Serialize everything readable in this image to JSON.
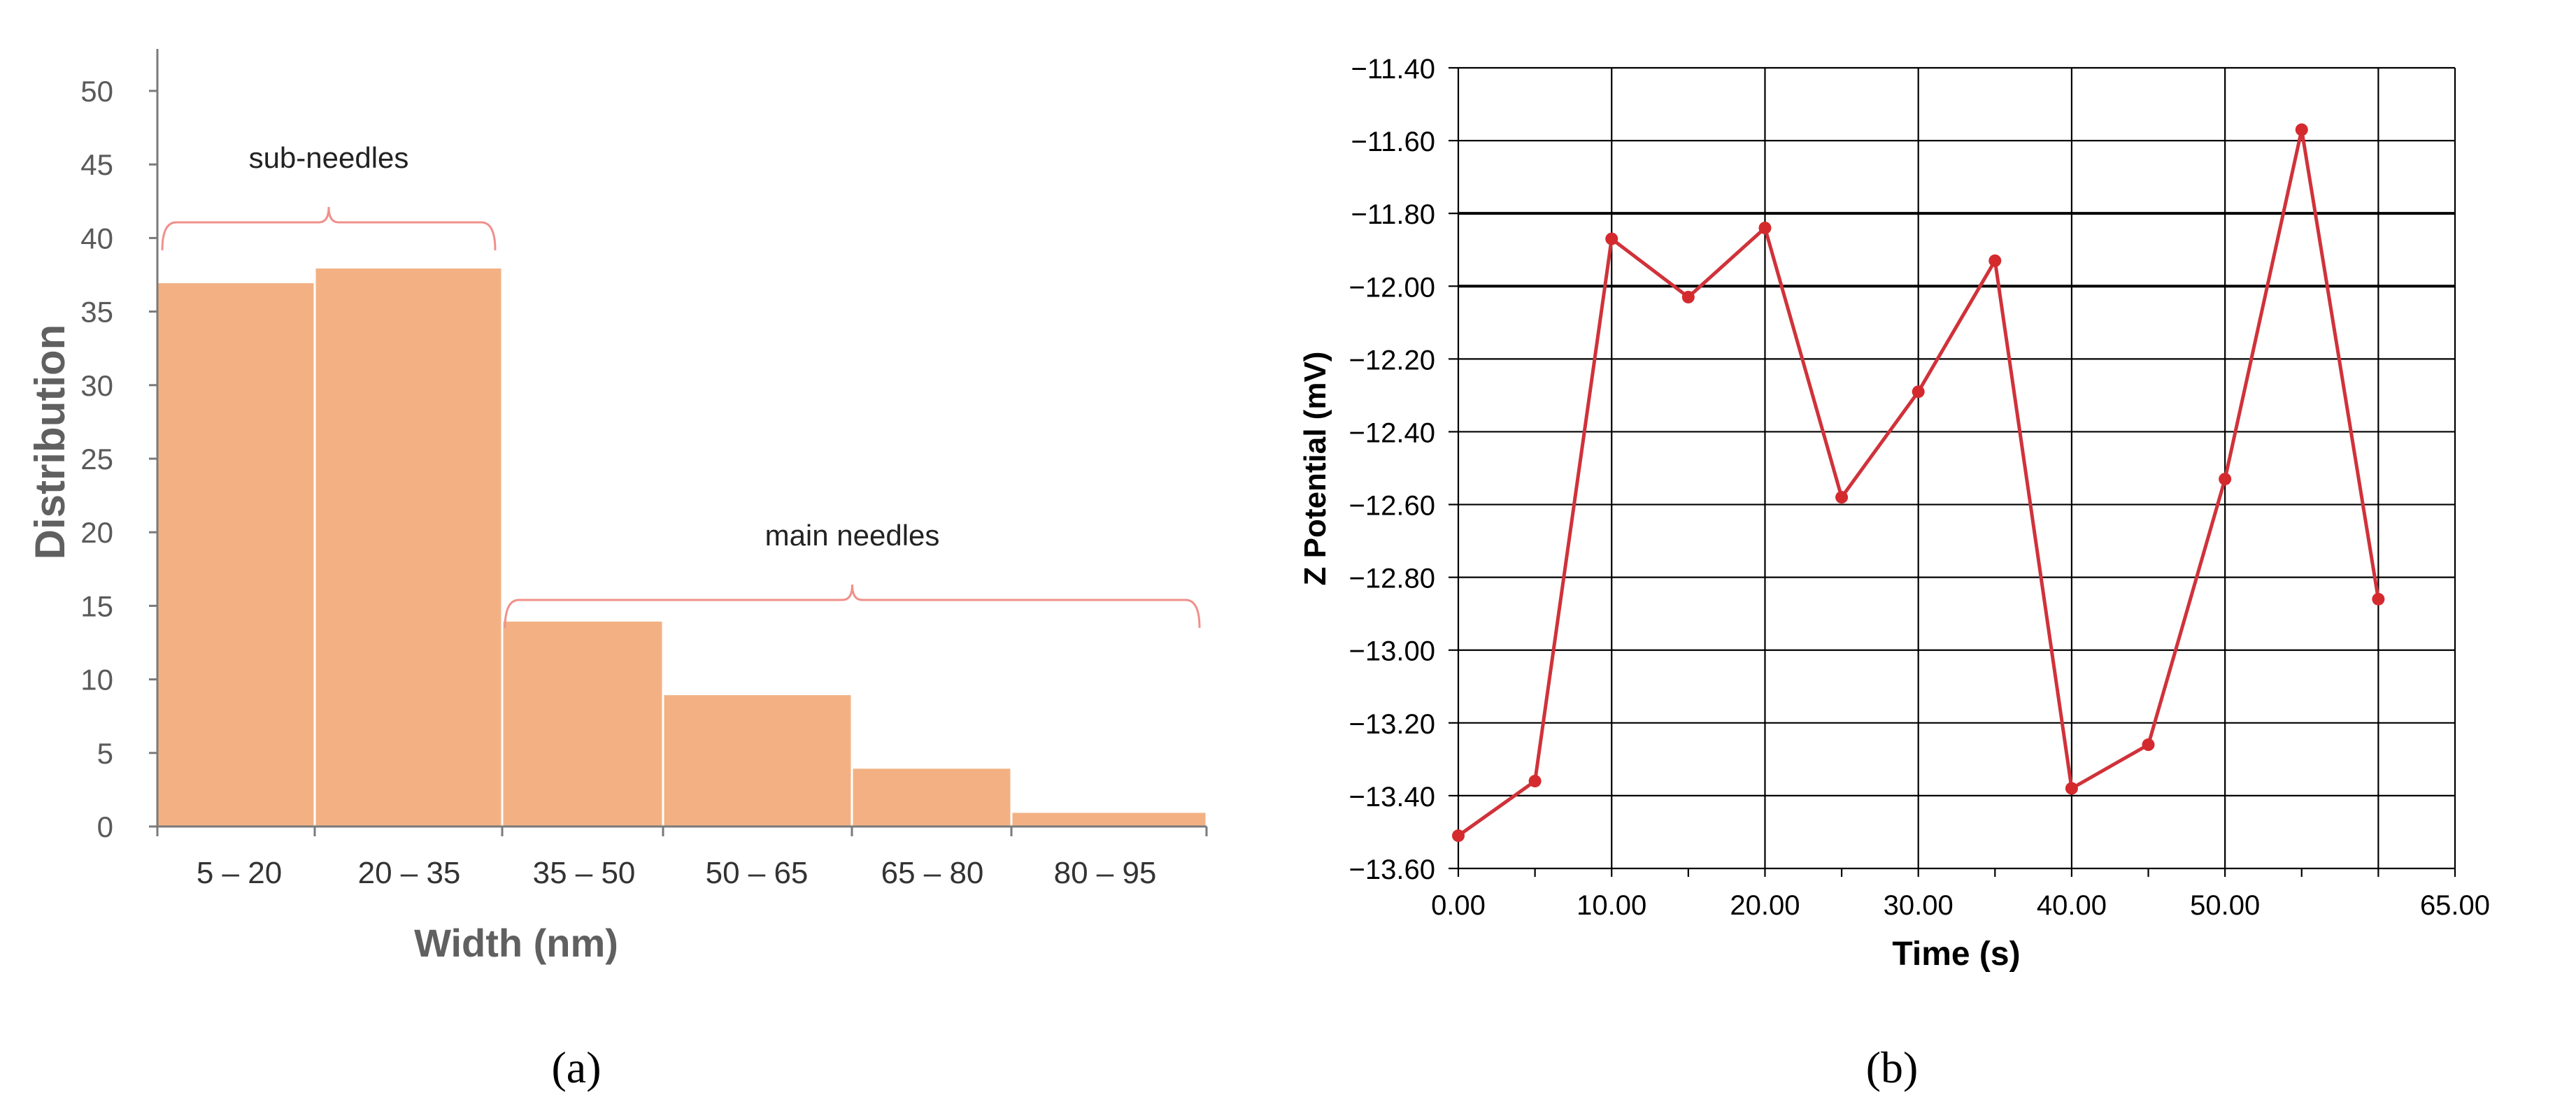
{
  "colors": {
    "bar_fill": "#F3B183",
    "bracket": "#F0908A",
    "series_line": "#D0323A",
    "marker": "#D42A2E",
    "grid_b": "#000000",
    "axis_a_text": "#5A5A5A"
  },
  "panels": {
    "a": {
      "label": "(a)"
    },
    "b": {
      "label": "(b)"
    }
  },
  "chart_data": [
    {
      "type": "bar",
      "categories": [
        "5 – 20",
        "20 – 35",
        "35 – 50",
        "50 – 65",
        "65 – 80",
        "80 – 95"
      ],
      "values": [
        37,
        38,
        14,
        9,
        4,
        1
      ],
      "xlabel": "Width (nm)",
      "ylabel": "Distribution",
      "ylim": [
        0,
        50
      ],
      "yticks": [
        0,
        5,
        10,
        15,
        20,
        25,
        30,
        35,
        40,
        45,
        50
      ],
      "grid": false,
      "annotations": [
        {
          "text": "sub-needles",
          "from_category": 0,
          "to_category": 1
        },
        {
          "text": "main needles",
          "from_category": 2,
          "to_category": 5
        }
      ]
    },
    {
      "type": "line",
      "x": [
        0,
        5,
        10,
        15,
        20,
        25,
        30,
        35,
        40,
        45,
        50,
        55,
        60
      ],
      "series": [
        {
          "values": [
            -13.51,
            -13.36,
            -11.87,
            -12.03,
            -11.84,
            -12.58,
            -12.29,
            -11.93,
            -13.38,
            -13.26,
            -12.53,
            -11.57,
            -12.86
          ]
        }
      ],
      "xlabel": "Time (s)",
      "ylabel": "Z Potential (mV)",
      "xlim": [
        0,
        65
      ],
      "ylim": [
        -13.6,
        -11.4
      ],
      "xticks": [
        "0.00",
        "10.00",
        "20.00",
        "30.00",
        "40.00",
        "50.00",
        "65.00"
      ],
      "yticks": [
        "-11.40",
        "-11.60",
        "-11.80",
        "-12.00",
        "-12.20",
        "-12.40",
        "-12.60",
        "-12.80",
        "-13.00",
        "-13.20",
        "-13.40",
        "-13.60"
      ],
      "grid": true
    }
  ]
}
